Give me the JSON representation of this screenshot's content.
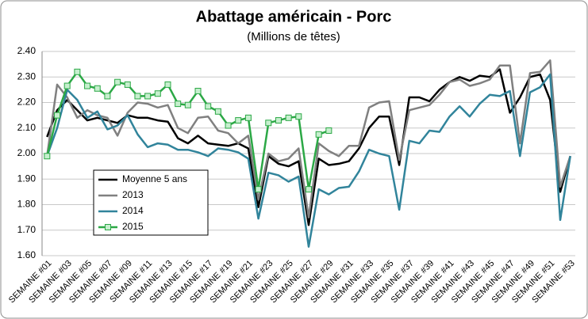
{
  "chart_data": {
    "type": "line",
    "title": "Abattage américain - Porc",
    "subtitle": "(Millions de têtes)",
    "categories": [
      "SEMAINE #01",
      null,
      "SEMAINE #03",
      null,
      "SEMAINE #05",
      null,
      "SEMAINE #07",
      null,
      "SEMAINE #09",
      null,
      "SEMAINE #11",
      null,
      "SEMAINE #13",
      null,
      "SEMAINE #15",
      null,
      "SEMAINE #17",
      null,
      "SEMAINE #19",
      null,
      "SEMAINE #21",
      null,
      "SEMAINE #23",
      null,
      "SEMAINE #25",
      null,
      "SEMAINE #27",
      null,
      "SEMAINE #29",
      null,
      "SEMAINE #31",
      null,
      "SEMAINE #33",
      null,
      "SEMAINE #35",
      null,
      "SEMAINE #37",
      null,
      "SEMAINE #39",
      null,
      "SEMAINE #41",
      null,
      "SEMAINE #43",
      null,
      "SEMAINE #45",
      null,
      "SEMAINE #47",
      null,
      "SEMAINE #49",
      null,
      "SEMAINE #51",
      null,
      "SEMAINE #53"
    ],
    "series": [
      {
        "name": "Moyenne 5 ans",
        "color": "#000000",
        "values": [
          2.065,
          2.17,
          2.21,
          2.17,
          2.13,
          2.14,
          2.13,
          2.12,
          2.15,
          2.14,
          2.14,
          2.13,
          2.125,
          2.06,
          2.04,
          2.07,
          2.04,
          2.035,
          2.03,
          2.04,
          2.02,
          1.79,
          1.99,
          1.96,
          1.95,
          1.97,
          1.72,
          1.98,
          1.955,
          1.96,
          1.97,
          2.02,
          2.1,
          2.145,
          2.145,
          1.955,
          2.22,
          2.22,
          2.205,
          2.25,
          2.28,
          2.3,
          2.285,
          2.305,
          2.3,
          2.33,
          2.16,
          2.22,
          2.3,
          2.31,
          2.21,
          1.85,
          1.99
        ]
      },
      {
        "name": "2013",
        "color": "#808080",
        "values": [
          1.99,
          2.27,
          2.22,
          2.14,
          2.17,
          2.15,
          2.14,
          2.07,
          2.16,
          2.2,
          2.195,
          2.18,
          2.19,
          2.1,
          2.08,
          2.14,
          2.145,
          2.09,
          2.08,
          2.04,
          2.07,
          1.82,
          2.0,
          1.97,
          1.98,
          2.02,
          1.75,
          2.04,
          2.01,
          1.99,
          2.03,
          2.03,
          2.18,
          2.2,
          2.205,
          1.975,
          2.17,
          2.18,
          2.19,
          2.23,
          2.28,
          2.29,
          2.265,
          2.275,
          2.29,
          2.345,
          2.345,
          2.04,
          2.315,
          2.32,
          2.365,
          1.87,
          1.99
        ]
      },
      {
        "name": "2014",
        "color": "#31849b",
        "values": [
          1.99,
          2.1,
          2.25,
          2.21,
          2.14,
          2.165,
          2.095,
          2.11,
          2.15,
          2.075,
          2.025,
          2.04,
          2.035,
          2.015,
          2.015,
          2.005,
          1.99,
          2.02,
          2.015,
          2.005,
          1.98,
          1.745,
          1.925,
          1.915,
          1.89,
          1.91,
          1.635,
          1.86,
          1.84,
          1.865,
          1.87,
          1.93,
          2.015,
          2.0,
          1.99,
          1.78,
          2.05,
          2.04,
          2.09,
          2.085,
          2.145,
          2.185,
          2.145,
          2.195,
          2.23,
          2.225,
          2.245,
          1.99,
          2.24,
          2.26,
          2.31,
          1.74,
          1.99
        ]
      },
      {
        "name": "2015",
        "color": "#2ca846",
        "marker": "square",
        "values": [
          1.99,
          2.15,
          2.265,
          2.32,
          2.265,
          2.255,
          2.225,
          2.28,
          2.27,
          2.225,
          2.225,
          2.235,
          2.27,
          2.195,
          2.19,
          2.245,
          2.185,
          2.165,
          2.11,
          2.13,
          2.14,
          1.86,
          2.12,
          2.13,
          2.14,
          2.145,
          1.86,
          2.075,
          2.09,
          null,
          null,
          null,
          null,
          null,
          null,
          null,
          null,
          null,
          null,
          null,
          null,
          null,
          null,
          null,
          null,
          null,
          null,
          null,
          null,
          null,
          null,
          null,
          null
        ]
      }
    ],
    "ylim": [
      1.6,
      2.4
    ],
    "yticks": [
      {
        "value": 1.6,
        "label": "1.60"
      },
      {
        "value": 1.7,
        "label": "1.70"
      },
      {
        "value": 1.8,
        "label": "1.80"
      },
      {
        "value": 1.9,
        "label": "1.90"
      },
      {
        "value": 2.0,
        "label": "2.00"
      },
      {
        "value": 2.1,
        "label": "2.10"
      },
      {
        "value": 2.2,
        "label": "2.20"
      },
      {
        "value": 2.3,
        "label": "2.30"
      },
      {
        "value": 2.4,
        "label": "2.40"
      }
    ],
    "grid": true
  }
}
